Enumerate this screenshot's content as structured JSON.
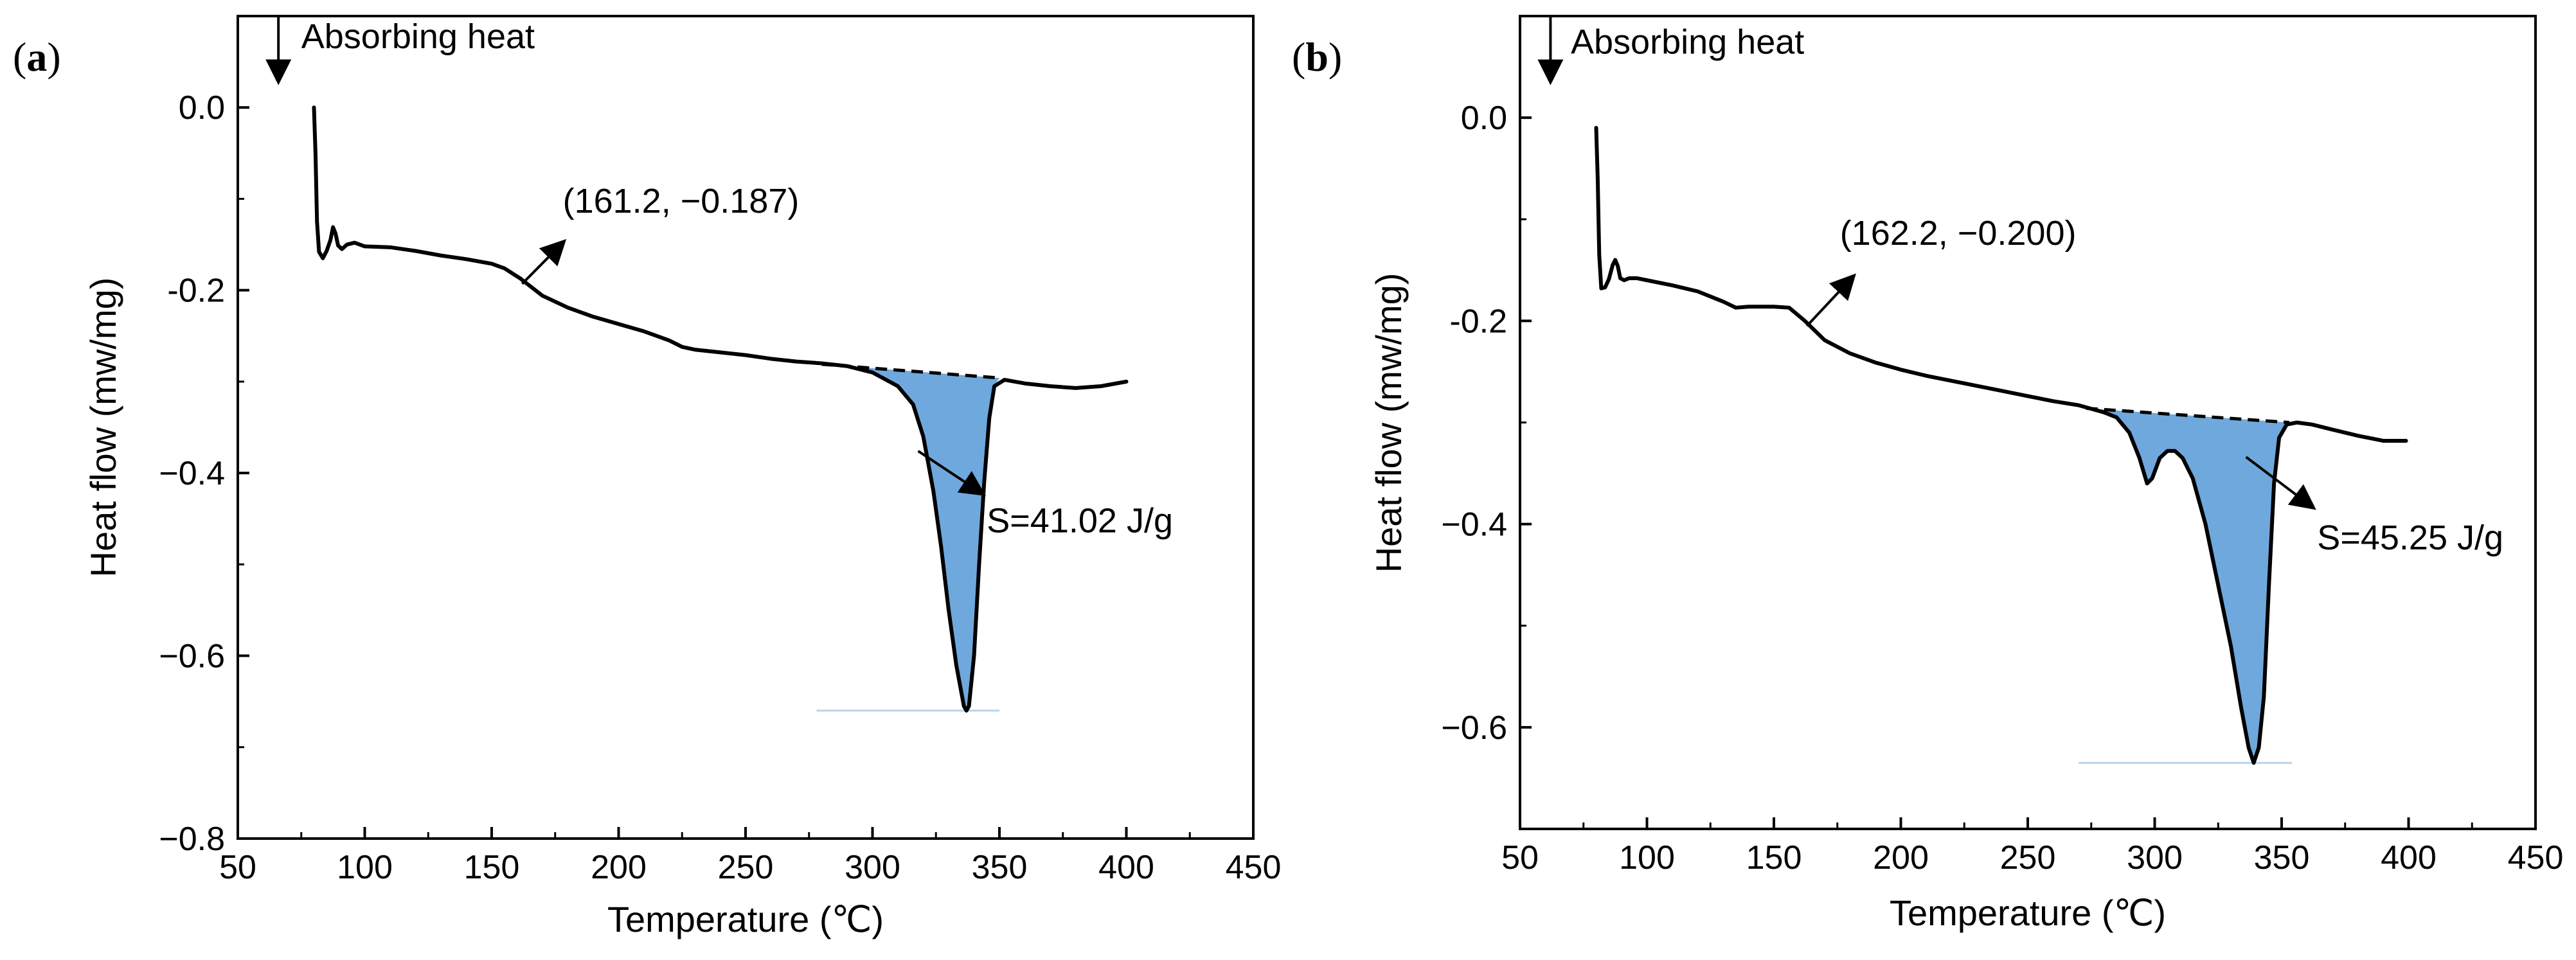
{
  "chart_data": [
    {
      "panel": "(a)",
      "panel_letter": "a",
      "type": "line",
      "title": "",
      "xlabel": "Temperature (℃)",
      "ylabel": "Heat flow (mw/mg)",
      "xlim": [
        50,
        450
      ],
      "ylim": [
        -0.8,
        0.1
      ],
      "xticks": [
        50,
        100,
        150,
        200,
        250,
        300,
        350,
        400,
        450
      ],
      "xtick_labels": [
        "50",
        "100",
        "150",
        "200",
        "250",
        "300",
        "350",
        "400",
        "450"
      ],
      "yticks": [
        0.0,
        -0.2,
        -0.4,
        -0.6,
        -0.8
      ],
      "ytick_labels": [
        "0.0",
        "-0.2",
        "−0.4",
        "−0.6",
        "−0.8"
      ],
      "grid": false,
      "curve_color": "#000000",
      "fill_color": "#6fa8dc",
      "series": [
        {
          "name": "DSC curve",
          "points": [
            [
              80.0,
              0.0
            ],
            [
              80.6,
              -0.05
            ],
            [
              81.2,
              -0.125
            ],
            [
              82.0,
              -0.158
            ],
            [
              83.5,
              -0.165
            ],
            [
              85.0,
              -0.157
            ],
            [
              86.5,
              -0.145
            ],
            [
              87.5,
              -0.131
            ],
            [
              88.5,
              -0.138
            ],
            [
              89.5,
              -0.151
            ],
            [
              91.0,
              -0.155
            ],
            [
              93.0,
              -0.15
            ],
            [
              96.0,
              -0.148
            ],
            [
              100,
              -0.152
            ],
            [
              110,
              -0.153
            ],
            [
              120,
              -0.157
            ],
            [
              130,
              -0.162
            ],
            [
              140,
              -0.166
            ],
            [
              150,
              -0.171
            ],
            [
              155,
              -0.176
            ],
            [
              161.2,
              -0.187
            ],
            [
              170,
              -0.206
            ],
            [
              180,
              -0.219
            ],
            [
              190,
              -0.229
            ],
            [
              200,
              -0.237
            ],
            [
              210,
              -0.245
            ],
            [
              220,
              -0.255
            ],
            [
              225,
              -0.262
            ],
            [
              230,
              -0.265
            ],
            [
              240,
              -0.268
            ],
            [
              250,
              -0.271
            ],
            [
              260,
              -0.275
            ],
            [
              270,
              -0.278
            ],
            [
              280,
              -0.28
            ],
            [
              290,
              -0.283
            ],
            [
              300,
              -0.29
            ],
            [
              310,
              -0.305
            ],
            [
              316,
              -0.325
            ],
            [
              320,
              -0.36
            ],
            [
              324,
              -0.42
            ],
            [
              327,
              -0.48
            ],
            [
              330,
              -0.55
            ],
            [
              333,
              -0.61
            ],
            [
              336,
              -0.655
            ],
            [
              337,
              -0.66
            ],
            [
              338,
              -0.655
            ],
            [
              340,
              -0.6
            ],
            [
              342,
              -0.5
            ],
            [
              344,
              -0.41
            ],
            [
              346,
              -0.34
            ],
            [
              348,
              -0.305
            ],
            [
              352,
              -0.298
            ],
            [
              360,
              -0.302
            ],
            [
              370,
              -0.305
            ],
            [
              380,
              -0.307
            ],
            [
              390,
              -0.305
            ],
            [
              400,
              -0.3
            ]
          ]
        }
      ],
      "baseline_segment": [
        [
          280,
          -0.281
        ],
        [
          350,
          -0.296
        ]
      ],
      "min_marker_x": [
        278,
        350
      ],
      "integration_area": "S=41.02 J/g",
      "inflection_point": [
        161.2,
        -0.187
      ],
      "annotations": {
        "heat_direction": "Absorbing heat",
        "inflection_label": "(161.2, −0.187)",
        "area_label": "S=41.02 J/g"
      },
      "arrows": [
        {
          "from": [
            162,
            -0.193
          ],
          "to": [
            178,
            -0.148
          ]
        },
        {
          "from": [
            318,
            -0.376
          ],
          "to": [
            343,
            -0.422
          ]
        }
      ],
      "heat_arrow": {
        "x": 66,
        "from": 0.1,
        "to": 0.03
      },
      "annotation_positions": {
        "heat_direction": [
          75,
          0.065
        ],
        "inflection_label": [
          178,
          -0.115
        ],
        "area_label": [
          345,
          -0.465
        ]
      }
    },
    {
      "panel": "(b)",
      "panel_letter": "b",
      "type": "line",
      "title": "",
      "xlabel": "Temperature (℃)",
      "ylabel": "Heat flow (mw/mg)",
      "xlim": [
        50,
        450
      ],
      "ylim": [
        -0.7,
        0.1
      ],
      "xticks": [
        50,
        100,
        150,
        200,
        250,
        300,
        350,
        400,
        450
      ],
      "xtick_labels": [
        "50",
        "100",
        "150",
        "200",
        "250",
        "300",
        "350",
        "400",
        "450"
      ],
      "yticks": [
        0.0,
        -0.2,
        -0.4,
        -0.6
      ],
      "ytick_labels": [
        "0.0",
        "-0.2",
        "−0.4",
        "−0.6"
      ],
      "grid": false,
      "curve_color": "#000000",
      "fill_color": "#6fa8dc",
      "series": [
        {
          "name": "DSC curve",
          "points": [
            [
              80.0,
              -0.01
            ],
            [
              80.6,
              -0.06
            ],
            [
              81.2,
              -0.135
            ],
            [
              82.0,
              -0.168
            ],
            [
              83.5,
              -0.167
            ],
            [
              85.0,
              -0.159
            ],
            [
              86.5,
              -0.145
            ],
            [
              87.5,
              -0.14
            ],
            [
              88.5,
              -0.146
            ],
            [
              89.5,
              -0.158
            ],
            [
              91.0,
              -0.16
            ],
            [
              93.0,
              -0.158
            ],
            [
              96.0,
              -0.158
            ],
            [
              100,
              -0.16
            ],
            [
              110,
              -0.165
            ],
            [
              120,
              -0.171
            ],
            [
              130,
              -0.181
            ],
            [
              135,
              -0.187
            ],
            [
              140,
              -0.186
            ],
            [
              150,
              -0.186
            ],
            [
              156,
              -0.187
            ],
            [
              162.2,
              -0.2
            ],
            [
              170,
              -0.219
            ],
            [
              180,
              -0.232
            ],
            [
              190,
              -0.241
            ],
            [
              200,
              -0.248
            ],
            [
              210,
              -0.254
            ],
            [
              220,
              -0.259
            ],
            [
              230,
              -0.264
            ],
            [
              240,
              -0.269
            ],
            [
              250,
              -0.274
            ],
            [
              260,
              -0.279
            ],
            [
              270,
              -0.283
            ],
            [
              280,
              -0.29
            ],
            [
              285,
              -0.295
            ],
            [
              290,
              -0.31
            ],
            [
              294,
              -0.335
            ],
            [
              297,
              -0.36
            ],
            [
              299,
              -0.355
            ],
            [
              302,
              -0.335
            ],
            [
              305,
              -0.328
            ],
            [
              308,
              -0.328
            ],
            [
              311,
              -0.335
            ],
            [
              315,
              -0.355
            ],
            [
              320,
              -0.4
            ],
            [
              325,
              -0.46
            ],
            [
              330,
              -0.52
            ],
            [
              334,
              -0.58
            ],
            [
              337,
              -0.62
            ],
            [
              339,
              -0.635
            ],
            [
              341,
              -0.62
            ],
            [
              343,
              -0.57
            ],
            [
              345,
              -0.46
            ],
            [
              347,
              -0.36
            ],
            [
              349,
              -0.315
            ],
            [
              352,
              -0.302
            ],
            [
              356,
              -0.3
            ],
            [
              362,
              -0.302
            ],
            [
              370,
              -0.307
            ],
            [
              380,
              -0.313
            ],
            [
              390,
              -0.318
            ],
            [
              399,
              -0.318
            ]
          ]
        }
      ],
      "baseline_segment": [
        [
          273,
          -0.286
        ],
        [
          353,
          -0.3
        ]
      ],
      "min_marker_x": [
        270,
        354
      ],
      "integration_area": "S=45.25 J/g",
      "inflection_point": [
        162.2,
        -0.2
      ],
      "annotations": {
        "heat_direction": "Absorbing heat",
        "inflection_label": "(162.2, −0.200)",
        "area_label": "S=45.25 J/g"
      },
      "arrows": [
        {
          "from": [
            163,
            -0.205
          ],
          "to": [
            181,
            -0.157
          ]
        },
        {
          "from": [
            336,
            -0.334
          ],
          "to": [
            362,
            -0.383
          ]
        }
      ],
      "heat_arrow": {
        "x": 62,
        "from": 0.1,
        "to": 0.037
      },
      "annotation_positions": {
        "heat_direction": [
          70,
          0.063
        ],
        "inflection_label": [
          176,
          -0.125
        ],
        "area_label": [
          364,
          -0.425
        ]
      }
    }
  ]
}
